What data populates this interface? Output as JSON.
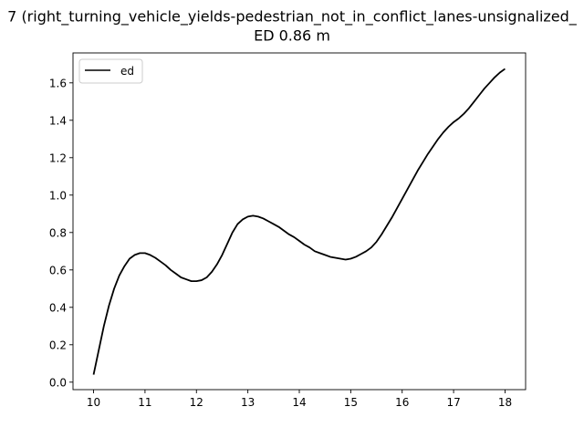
{
  "chart_data": {
    "type": "line",
    "title_line1": "7 (right_turning_vehicle_yields-pedestrian_not_in_conflict_lanes-unsignalized_",
    "title_line2": "ED 0.86 m",
    "xlabel": "",
    "ylabel": "",
    "xlim": [
      9.6,
      18.4
    ],
    "ylim": [
      -0.04,
      1.76
    ],
    "xticks": [
      10,
      11,
      12,
      13,
      14,
      15,
      16,
      17,
      18
    ],
    "yticks": [
      0.0,
      0.2,
      0.4,
      0.6,
      0.8,
      1.0,
      1.2,
      1.4,
      1.6
    ],
    "ytick_labels": [
      "0.0",
      "0.2",
      "0.4",
      "0.6",
      "0.8",
      "1.0",
      "1.2",
      "1.4",
      "1.6"
    ],
    "grid": false,
    "legend": {
      "position": "upper-left",
      "entries": [
        "ed"
      ]
    },
    "series": [
      {
        "name": "ed",
        "color": "#000000",
        "x": [
          10.0,
          10.1,
          10.2,
          10.3,
          10.4,
          10.5,
          10.6,
          10.7,
          10.8,
          10.9,
          11.0,
          11.1,
          11.2,
          11.3,
          11.4,
          11.5,
          11.6,
          11.7,
          11.8,
          11.9,
          12.0,
          12.1,
          12.2,
          12.3,
          12.4,
          12.5,
          12.6,
          12.7,
          12.8,
          12.9,
          13.0,
          13.1,
          13.2,
          13.3,
          13.4,
          13.5,
          13.6,
          13.7,
          13.8,
          13.9,
          14.0,
          14.1,
          14.2,
          14.3,
          14.4,
          14.5,
          14.6,
          14.7,
          14.8,
          14.9,
          15.0,
          15.1,
          15.2,
          15.3,
          15.4,
          15.5,
          15.6,
          15.7,
          15.8,
          15.9,
          16.0,
          16.1,
          16.2,
          16.3,
          16.4,
          16.5,
          16.6,
          16.7,
          16.8,
          16.9,
          17.0,
          17.1,
          17.2,
          17.3,
          17.4,
          17.5,
          17.6,
          17.7,
          17.8,
          17.9,
          18.0
        ],
        "y": [
          0.04,
          0.17,
          0.3,
          0.41,
          0.5,
          0.57,
          0.62,
          0.66,
          0.68,
          0.69,
          0.69,
          0.68,
          0.665,
          0.645,
          0.625,
          0.6,
          0.58,
          0.56,
          0.55,
          0.54,
          0.54,
          0.545,
          0.56,
          0.59,
          0.63,
          0.68,
          0.74,
          0.8,
          0.845,
          0.87,
          0.885,
          0.89,
          0.885,
          0.875,
          0.86,
          0.845,
          0.83,
          0.81,
          0.79,
          0.775,
          0.755,
          0.735,
          0.72,
          0.7,
          0.69,
          0.68,
          0.67,
          0.665,
          0.66,
          0.655,
          0.66,
          0.67,
          0.685,
          0.7,
          0.72,
          0.75,
          0.79,
          0.835,
          0.88,
          0.93,
          0.98,
          1.03,
          1.08,
          1.13,
          1.175,
          1.22,
          1.26,
          1.3,
          1.335,
          1.365,
          1.39,
          1.41,
          1.435,
          1.465,
          1.5,
          1.535,
          1.57,
          1.6,
          1.63,
          1.655,
          1.675
        ]
      }
    ]
  }
}
